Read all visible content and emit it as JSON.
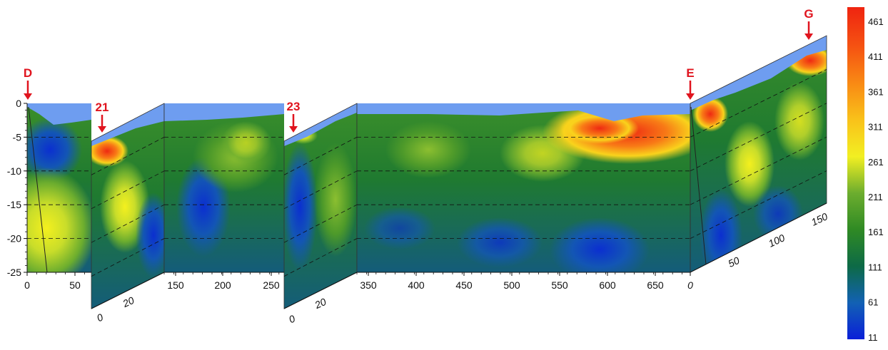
{
  "chart_data": {
    "type": "heatmap",
    "title": "",
    "xlabel": "",
    "ylabel": "",
    "ylim": [
      -25,
      0
    ],
    "y_ticks": [
      "0",
      "-5",
      "-10",
      "-15",
      "-20",
      "-25"
    ],
    "x_ticks_main": [
      "0",
      "50",
      "150",
      "200",
      "250",
      "350",
      "400",
      "450",
      "500",
      "550",
      "600",
      "650",
      "0"
    ],
    "x_ticks_section_21": [
      "0",
      "20"
    ],
    "x_ticks_section_23": [
      "0",
      "20"
    ],
    "x_ticks_section_EG": [
      "50",
      "100",
      "150"
    ],
    "markers": [
      "D",
      "21",
      "23",
      "E",
      "G"
    ],
    "colorbar": {
      "ticks": [
        "461",
        "411",
        "361",
        "311",
        "261",
        "211",
        "161",
        "111",
        "61",
        "11"
      ],
      "colors": [
        "#0a1fd8",
        "#1261b4",
        "#0d6a46",
        "#2f8a24",
        "#6cad2e",
        "#f2ef22",
        "#f9c21a",
        "#f98a14",
        "#f55312",
        "#ef2410"
      ]
    },
    "grid": "dashed-horizontal",
    "water_color": "#6e9df0"
  }
}
